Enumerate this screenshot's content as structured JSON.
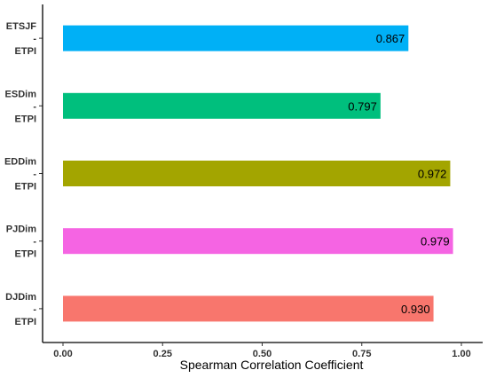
{
  "chart_data": {
    "type": "bar",
    "orientation": "horizontal",
    "categories": [
      [
        "ETSJF",
        "-",
        "ETPI"
      ],
      [
        "ESDim",
        "-",
        "ETPI"
      ],
      [
        "EDDim",
        "-",
        "ETPI"
      ],
      [
        "PJDim",
        "-",
        "ETPI"
      ],
      [
        "DJDim",
        "-",
        "ETPI"
      ]
    ],
    "values": [
      0.867,
      0.797,
      0.972,
      0.979,
      0.93
    ],
    "value_labels": [
      "0.867",
      "0.797",
      "0.972",
      "0.979",
      "0.930"
    ],
    "colors": [
      "#00B0F6",
      "#00BF7D",
      "#A3A500",
      "#F564E3",
      "#F8766D"
    ],
    "xlabel": "Spearman Correlation Coefficient",
    "ylabel": "",
    "xlim": [
      -0.05,
      1.04
    ],
    "xticks": [
      0,
      0.25,
      0.5,
      0.75,
      1
    ],
    "xtick_labels": [
      "0.00",
      "0.25",
      "0.50",
      "0.75",
      "1.00"
    ],
    "grid": false,
    "legend": "none"
  }
}
